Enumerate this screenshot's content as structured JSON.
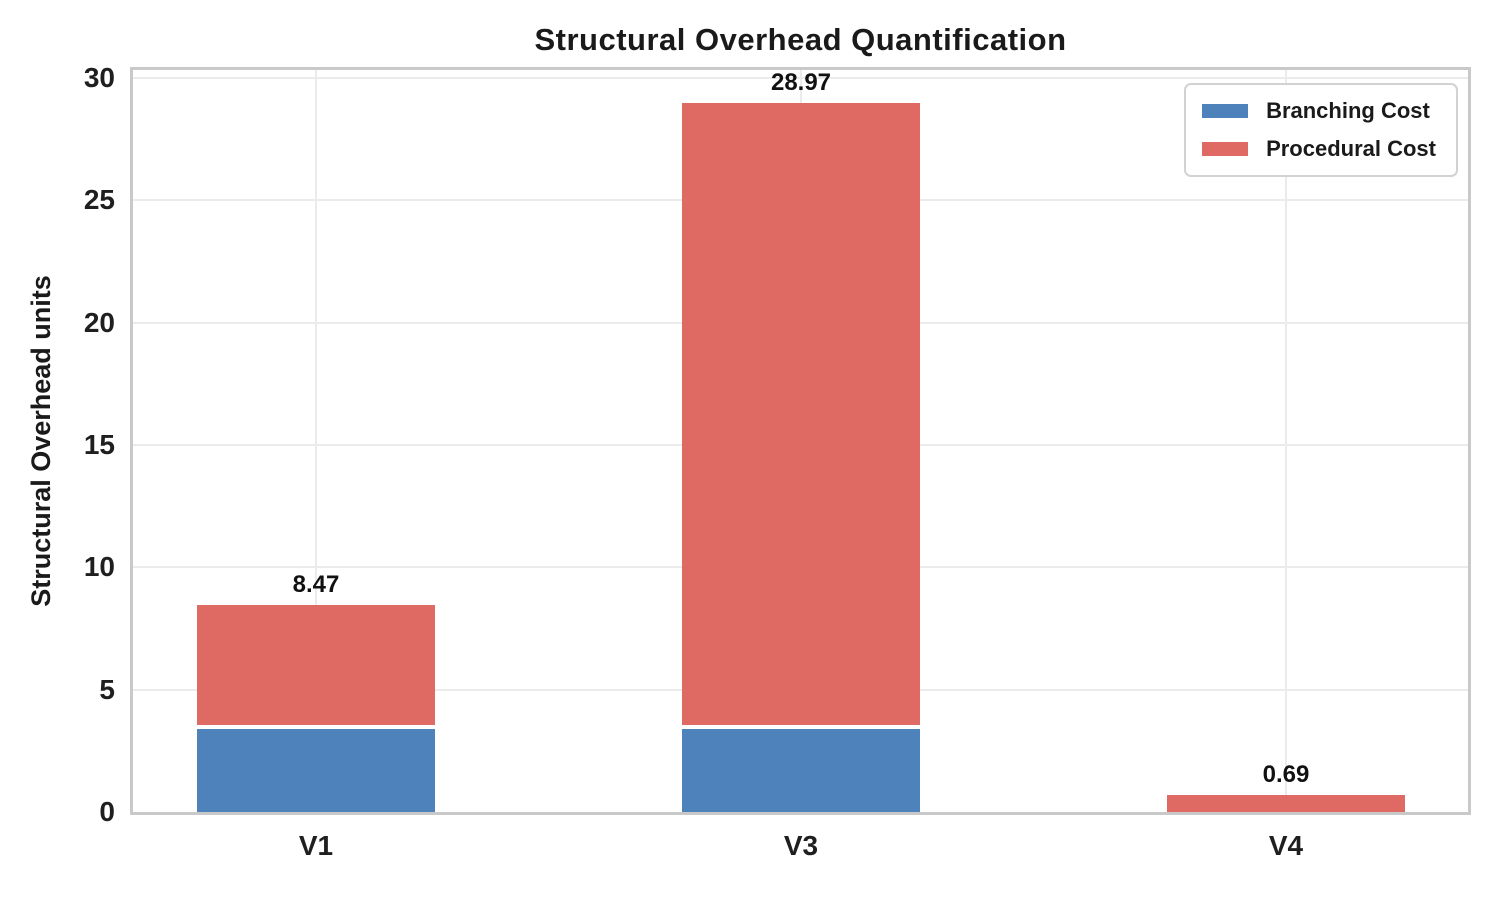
{
  "chart_data": {
    "type": "bar",
    "stacked": true,
    "title": "Structural Overhead Quantification",
    "xlabel": "",
    "ylabel": "Structural Overhead units",
    "categories": [
      "V1",
      "V3",
      "V4"
    ],
    "series": [
      {
        "name": "Branching Cost",
        "color": "#4d82ba",
        "values": [
          3.4,
          3.4,
          0.0
        ]
      },
      {
        "name": "Procedural Cost",
        "color": "#df6a64",
        "values": [
          5.07,
          25.57,
          0.69
        ]
      }
    ],
    "totals": [
      8.47,
      28.97,
      0.69
    ],
    "total_labels": [
      "8.47",
      "28.97",
      "0.69"
    ],
    "ylim": [
      0,
      30
    ],
    "yticks": [
      0,
      5,
      10,
      15,
      20,
      25,
      30
    ],
    "grid": true,
    "legend_position": "upper right",
    "grid_color": "#ebebeb",
    "spine_color": "#c9c9c9"
  }
}
